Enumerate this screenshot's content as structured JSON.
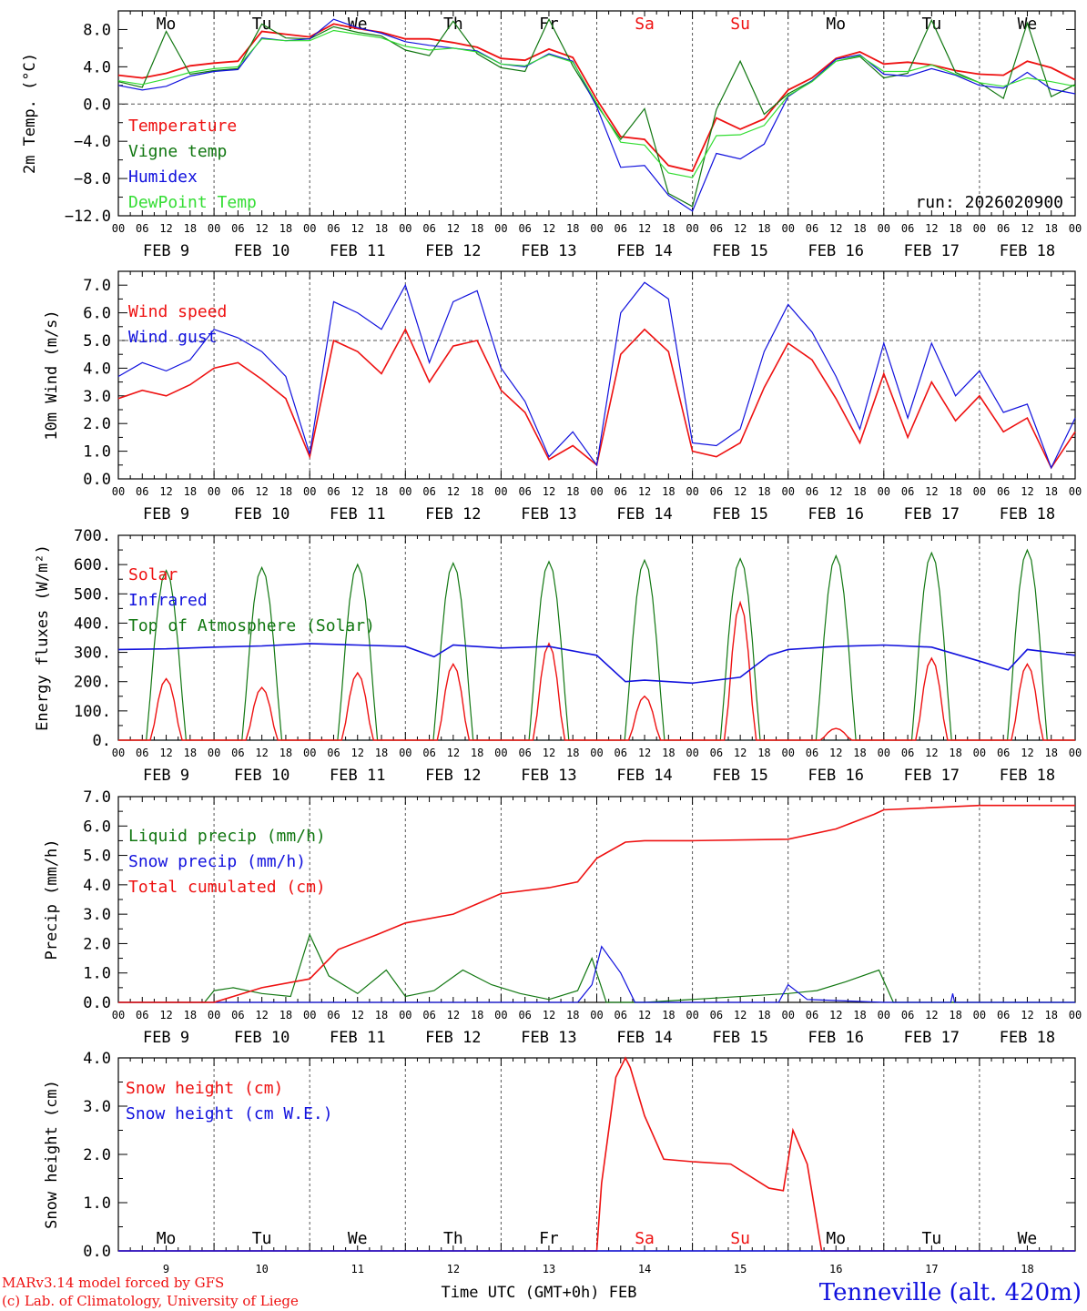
{
  "colors": {
    "red": "#ee1111",
    "green": "#117711",
    "blue": "#1111dd",
    "lightgreen": "#33dd33",
    "axis": "#000000",
    "grid": "#555555"
  },
  "hour_ticks": [
    "00",
    "06",
    "12",
    "18"
  ],
  "final_hour_tick": "00",
  "date_labels": [
    "FEB  9",
    "FEB 10",
    "FEB 11",
    "FEB 12",
    "FEB 13",
    "FEB 14",
    "FEB 15",
    "FEB 16",
    "FEB 17",
    "FEB 18"
  ],
  "weekdays": [
    {
      "label": "Mo",
      "weekend": false
    },
    {
      "label": "Tu",
      "weekend": false
    },
    {
      "label": "We",
      "weekend": false
    },
    {
      "label": "Th",
      "weekend": false
    },
    {
      "label": "Fr",
      "weekend": false
    },
    {
      "label": "Sa",
      "weekend": true
    },
    {
      "label": "Su",
      "weekend": true
    },
    {
      "label": "Mo",
      "weekend": false
    },
    {
      "label": "Tu",
      "weekend": false
    },
    {
      "label": "We",
      "weekend": false
    }
  ],
  "chart_data": [
    {
      "type": "line",
      "id": "temperature",
      "ylabel": "2m Temp. (°C)",
      "ylim": [
        -12,
        10
      ],
      "yticks": [
        -12,
        -8,
        -4,
        0,
        4,
        8
      ],
      "ytick_labels": [
        "−12.0",
        "−8.0",
        "−4.0",
        "0.0",
        "4.0",
        "8.0"
      ],
      "hline": 0,
      "x_unit": "days since 2026-02-09 00 UTC",
      "annotation": "run: 2026020900",
      "series": [
        {
          "name": "Temperature",
          "color": "red",
          "x": [
            0,
            0.25,
            0.5,
            0.75,
            1,
            1.25,
            1.5,
            1.75,
            2,
            2.25,
            2.5,
            2.75,
            3,
            3.25,
            3.5,
            3.75,
            4,
            4.25,
            4.5,
            4.75,
            5,
            5.25,
            5.5,
            5.75,
            6,
            6.25,
            6.5,
            6.75,
            7,
            7.25,
            7.5,
            7.75,
            8,
            8.25,
            8.5,
            8.75,
            9,
            9.25,
            9.5,
            9.75,
            10
          ],
          "y": [
            3.1,
            2.8,
            3.3,
            4.1,
            4.4,
            4.6,
            7.8,
            7.5,
            7.2,
            8.6,
            8.1,
            7.7,
            7.0,
            7.0,
            6.6,
            6.1,
            4.9,
            4.7,
            5.9,
            5.0,
            0.5,
            -3.5,
            -3.8,
            -6.6,
            -7.2,
            -1.5,
            -2.7,
            -1.6,
            1.5,
            2.8,
            4.9,
            5.6,
            4.3,
            4.5,
            4.2,
            3.6,
            3.2,
            3.1,
            4.6,
            3.9,
            2.6
          ]
        },
        {
          "name": "Vigne temp",
          "color": "green",
          "x": [
            0,
            0.25,
            0.5,
            0.75,
            1,
            1.25,
            1.5,
            1.75,
            2,
            2.25,
            2.5,
            2.75,
            3,
            3.25,
            3.5,
            3.75,
            4,
            4.25,
            4.5,
            4.75,
            5,
            5.25,
            5.5,
            5.75,
            6,
            6.25,
            6.5,
            6.75,
            7,
            7.25,
            7.5,
            7.75,
            8,
            8.25,
            8.5,
            8.75,
            9,
            9.25,
            9.5,
            9.75,
            10
          ],
          "y": [
            2.4,
            1.8,
            7.8,
            3.2,
            3.6,
            3.8,
            8.6,
            7.1,
            7.0,
            8.3,
            7.7,
            7.3,
            5.8,
            5.2,
            8.9,
            5.4,
            3.9,
            3.5,
            9.1,
            4.1,
            -0.1,
            -3.8,
            -0.5,
            -9.6,
            -11.0,
            -0.6,
            4.6,
            -1.1,
            1.1,
            2.5,
            4.6,
            5.1,
            2.8,
            3.3,
            9.0,
            3.4,
            2.3,
            0.6,
            8.7,
            0.8,
            2.1
          ]
        },
        {
          "name": "Humidex",
          "color": "blue",
          "x": [
            0,
            0.25,
            0.5,
            0.75,
            1,
            1.25,
            1.5,
            1.75,
            2,
            2.25,
            2.5,
            2.75,
            3,
            3.25,
            3.5,
            3.75,
            4,
            4.25,
            4.5,
            4.75,
            5,
            5.25,
            5.5,
            5.75,
            6,
            6.25,
            6.5,
            6.75,
            7,
            7.25,
            7.5,
            7.75,
            8,
            8.25,
            8.5,
            8.75,
            9,
            9.25,
            9.5,
            9.75,
            10
          ],
          "y": [
            2.0,
            1.5,
            1.9,
            3.0,
            3.5,
            3.7,
            7.1,
            6.8,
            7.0,
            9.1,
            8.2,
            7.6,
            6.7,
            6.3,
            6.0,
            5.7,
            4.3,
            4.0,
            5.4,
            4.6,
            -0.3,
            -6.8,
            -6.6,
            -9.8,
            -11.5,
            -5.3,
            -5.9,
            -4.3,
            0.8,
            2.5,
            4.8,
            5.3,
            3.2,
            3.0,
            3.8,
            3.1,
            2.0,
            1.7,
            3.4,
            1.6,
            1.1
          ]
        },
        {
          "name": "DewPoint Temp",
          "color": "lightgreen",
          "x": [
            0,
            0.25,
            0.5,
            0.75,
            1,
            1.25,
            1.5,
            1.75,
            2,
            2.25,
            2.5,
            2.75,
            3,
            3.25,
            3.5,
            3.75,
            4,
            4.25,
            4.5,
            4.75,
            5,
            5.25,
            5.5,
            5.75,
            6,
            6.25,
            6.5,
            6.75,
            7,
            7.25,
            7.5,
            7.75,
            8,
            8.25,
            8.5,
            8.75,
            9,
            9.25,
            9.5,
            9.75,
            10
          ],
          "y": [
            2.5,
            2.1,
            2.7,
            3.4,
            3.8,
            4.0,
            7.0,
            6.8,
            6.8,
            7.9,
            7.5,
            7.1,
            6.2,
            5.8,
            6.0,
            5.6,
            4.3,
            4.1,
            5.3,
            4.5,
            0.1,
            -4.1,
            -4.4,
            -7.4,
            -7.9,
            -3.4,
            -3.3,
            -2.3,
            0.9,
            2.4,
            4.6,
            5.2,
            3.5,
            3.5,
            4.2,
            3.2,
            2.3,
            1.9,
            2.8,
            2.4,
            1.9
          ]
        }
      ]
    },
    {
      "type": "line",
      "id": "wind",
      "ylabel": "10m Wind (m/s)",
      "ylim": [
        0,
        7.5
      ],
      "yticks": [
        0,
        1,
        2,
        3,
        4,
        5,
        6,
        7
      ],
      "ytick_labels": [
        "0.0",
        "1.0",
        "2.0",
        "3.0",
        "4.0",
        "5.0",
        "6.0",
        "7.0"
      ],
      "hline": 5,
      "x_unit": "days since 2026-02-09 00 UTC",
      "series": [
        {
          "name": "Wind speed",
          "color": "red",
          "x": [
            0,
            0.25,
            0.5,
            0.75,
            1,
            1.25,
            1.5,
            1.75,
            2,
            2.25,
            2.5,
            2.75,
            3,
            3.25,
            3.5,
            3.75,
            4,
            4.25,
            4.5,
            4.75,
            5,
            5.25,
            5.5,
            5.75,
            6,
            6.25,
            6.5,
            6.75,
            7,
            7.25,
            7.5,
            7.75,
            8,
            8.25,
            8.5,
            8.75,
            9,
            9.25,
            9.5,
            9.75,
            10
          ],
          "y": [
            2.9,
            3.2,
            3.0,
            3.4,
            4.0,
            4.2,
            3.6,
            2.9,
            0.8,
            5.0,
            4.6,
            3.8,
            5.4,
            3.5,
            4.8,
            5.0,
            3.2,
            2.4,
            0.7,
            1.2,
            0.5,
            4.5,
            5.4,
            4.6,
            1.0,
            0.8,
            1.3,
            3.3,
            4.9,
            4.3,
            2.9,
            1.3,
            3.8,
            1.5,
            3.5,
            2.1,
            3.0,
            1.7,
            2.2,
            0.4,
            1.7
          ]
        },
        {
          "name": "Wind gust",
          "color": "blue",
          "x": [
            0,
            0.25,
            0.5,
            0.75,
            1,
            1.25,
            1.5,
            1.75,
            2,
            2.25,
            2.5,
            2.75,
            3,
            3.25,
            3.5,
            3.75,
            4,
            4.25,
            4.5,
            4.75,
            5,
            5.25,
            5.5,
            5.75,
            6,
            6.25,
            6.5,
            6.75,
            7,
            7.25,
            7.5,
            7.75,
            8,
            8.25,
            8.5,
            8.75,
            9,
            9.25,
            9.5,
            9.75,
            10
          ],
          "y": [
            3.7,
            4.2,
            3.9,
            4.3,
            5.4,
            5.1,
            4.6,
            3.7,
            0.9,
            6.4,
            6.0,
            5.4,
            7.0,
            4.2,
            6.4,
            6.8,
            4.0,
            2.8,
            0.8,
            1.7,
            0.5,
            6.0,
            7.1,
            6.5,
            1.3,
            1.2,
            1.8,
            4.6,
            6.3,
            5.3,
            3.7,
            1.8,
            4.9,
            2.2,
            4.9,
            3.0,
            3.9,
            2.4,
            2.7,
            0.4,
            2.2
          ]
        }
      ]
    },
    {
      "type": "line",
      "id": "energy",
      "ylabel": "Energy fluxes (W/m²)",
      "ylim": [
        0,
        700
      ],
      "yticks": [
        0,
        100,
        200,
        300,
        400,
        500,
        600,
        700
      ],
      "ytick_labels": [
        "0.",
        "100.",
        "200.",
        "300.",
        "400.",
        "500.",
        "600.",
        "700."
      ],
      "x_unit": "days since 2026-02-09 00 UTC",
      "series": [
        {
          "name": "Solar",
          "color": "red",
          "daily_peak": [
            210,
            180,
            230,
            260,
            330,
            150,
            470,
            40,
            280,
            260
          ]
        },
        {
          "name": "Infrared",
          "color": "blue",
          "x": [
            0,
            0.5,
            1,
            1.5,
            2,
            2.5,
            3,
            3.3,
            3.5,
            4,
            4.5,
            5,
            5.3,
            5.5,
            6,
            6.5,
            6.8,
            7,
            7.5,
            8,
            8.5,
            9,
            9.3,
            9.5,
            10
          ],
          "y": [
            310,
            312,
            318,
            322,
            330,
            325,
            320,
            285,
            325,
            315,
            320,
            290,
            200,
            205,
            195,
            215,
            290,
            310,
            320,
            325,
            318,
            270,
            240,
            310,
            290
          ]
        },
        {
          "name": "Top of Atmosphere (Solar)",
          "color": "green",
          "daily_peak": [
            580,
            590,
            600,
            605,
            610,
            615,
            620,
            630,
            640,
            650
          ]
        }
      ]
    },
    {
      "type": "line",
      "id": "precip",
      "ylabel": "Precip (mm/h)",
      "ylim": [
        0,
        7
      ],
      "yticks": [
        0,
        1,
        2,
        3,
        4,
        5,
        6,
        7
      ],
      "ytick_labels": [
        "0.0",
        "1.0",
        "2.0",
        "3.0",
        "4.0",
        "5.0",
        "6.0",
        "7.0"
      ],
      "x_unit": "days since 2026-02-09 00 UTC",
      "series": [
        {
          "name": "Liquid precip (mm/h)",
          "color": "green",
          "x": [
            0,
            0.9,
            1,
            1.2,
            1.5,
            1.8,
            2,
            2.2,
            2.5,
            2.8,
            3,
            3.3,
            3.6,
            3.9,
            4.2,
            4.5,
            4.8,
            4.95,
            5.1,
            5.5,
            7.0,
            7.3,
            7.6,
            7.95,
            8.1,
            8.5,
            9,
            10
          ],
          "y": [
            0,
            0,
            0.4,
            0.5,
            0.3,
            0.2,
            2.3,
            0.9,
            0.3,
            1.1,
            0.2,
            0.4,
            1.1,
            0.6,
            0.3,
            0.1,
            0.4,
            1.5,
            0,
            0,
            0.3,
            0.4,
            0.7,
            1.1,
            0,
            0,
            0,
            0
          ]
        },
        {
          "name": "Snow precip (mm/h)",
          "color": "blue",
          "x": [
            0,
            4.8,
            4.95,
            5.05,
            5.25,
            5.4,
            6.9,
            7.0,
            7.2,
            8.0,
            8.7,
            8.72,
            8.74,
            10
          ],
          "y": [
            0,
            0,
            0.6,
            1.9,
            1.0,
            0,
            0,
            0.6,
            0.1,
            0,
            0,
            0.3,
            0,
            0
          ]
        },
        {
          "name": "Total cumulated (cm)",
          "color": "red",
          "x": [
            0,
            1,
            1.5,
            2,
            2.3,
            2.7,
            3,
            3.5,
            4,
            4.5,
            4.8,
            5,
            5.3,
            5.5,
            6,
            7,
            7.5,
            7.9,
            8,
            9,
            10
          ],
          "y": [
            0,
            0,
            0.5,
            0.8,
            1.8,
            2.3,
            2.7,
            3.0,
            3.7,
            3.9,
            4.1,
            4.9,
            5.45,
            5.5,
            5.5,
            5.55,
            5.9,
            6.4,
            6.55,
            6.7,
            6.7
          ]
        }
      ]
    },
    {
      "type": "line",
      "id": "snow",
      "ylabel": "Snow height (cm)",
      "ylim": [
        0,
        4
      ],
      "yticks": [
        0,
        1,
        2,
        3,
        4
      ],
      "ytick_labels": [
        "0.0",
        "1.0",
        "2.0",
        "3.0",
        "4.0"
      ],
      "xlabel": "Time UTC (GMT+0h) FEB",
      "x_unit": "days since 2026-02-09 00 UTC",
      "day_numbers": [
        "9",
        "10",
        "11",
        "12",
        "13",
        "14",
        "15",
        "16",
        "17",
        "18"
      ],
      "series": [
        {
          "name": "Snow height (cm)",
          "color": "red",
          "x": [
            0,
            5.0,
            5.05,
            5.2,
            5.3,
            5.35,
            5.5,
            5.7,
            6.0,
            6.4,
            6.8,
            6.95,
            7.05,
            7.2,
            7.35,
            10
          ],
          "y": [
            0,
            0,
            1.4,
            3.6,
            4.0,
            3.8,
            2.8,
            1.9,
            1.85,
            1.8,
            1.3,
            1.25,
            2.5,
            1.8,
            0,
            0
          ]
        },
        {
          "name": "Snow height (cm W.E.)",
          "color": "blue",
          "x": [
            0,
            10
          ],
          "y": [
            0,
            0
          ]
        }
      ]
    }
  ],
  "footer": {
    "credit_line1": "MARv3.14 model forced by GFS",
    "credit_line2": "(c) Lab. of Climatology, University of Liege",
    "location": "Tenneville (alt. 420m)"
  }
}
